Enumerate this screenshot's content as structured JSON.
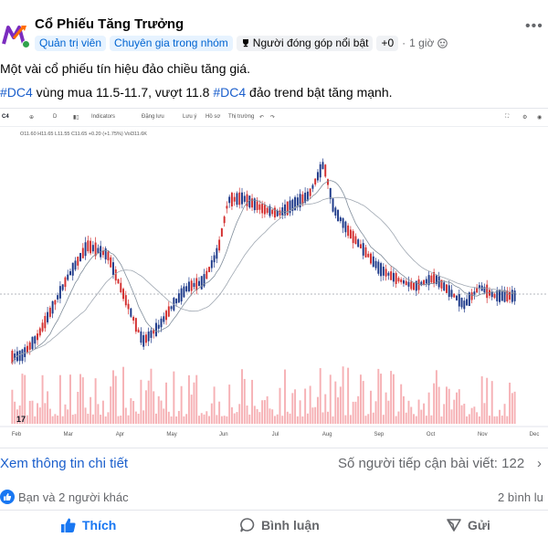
{
  "post": {
    "group_name": "Cổ Phiếu Tăng Trưởng",
    "badges": {
      "admin": "Quản trị viên",
      "expert": "Chuyên gia trong nhóm",
      "top_contributor": "Người đóng góp nổi bật",
      "plus": "+0"
    },
    "time": "1 giờ",
    "text_line1": "Một vài cổ phiếu tín hiệu đảo chiều tăng giá.",
    "line2": {
      "hashtag1": "#DC4",
      "mid": " vùng mua 11.5-11.7, vượt 11.8 ",
      "hashtag2": "#DC4",
      "end": " đảo trend bật tăng mạnh."
    }
  },
  "chart_toolbar": {
    "symbol": "C4",
    "interval": "D",
    "indicators": "Indicators",
    "alert": "Đặng lưu",
    "replay": "Lưu ý",
    "template": "Hồ sơ",
    "trade": "Thị trường"
  },
  "chart_ohlc": "O11.60 H11.65 L11.55 C11.65 +0.20 (+1.75%) Vol311.6K",
  "chart_data": {
    "type": "candlestick",
    "title": "",
    "x_tick_labels": [
      "Feb",
      "Mar",
      "Apr",
      "May",
      "Jun",
      "Jul",
      "Aug",
      "Sep",
      "Oct",
      "Nov",
      "Dec"
    ],
    "price_line_color": "#9aa0a6",
    "up_color": "#1e3a8a",
    "down_color": "#d32f2f",
    "volume_color": "#f4a3a8",
    "has_moving_averages": true,
    "has_volume": true
  },
  "footer": {
    "info_link": "Xem thông tin chi tiết",
    "reach": "Số người tiếp cận bài viết: 122",
    "reactors": "Bạn và 2 người khác",
    "comments": "2 bình lu",
    "like_label": "Thích",
    "comment_label": "Bình luận",
    "share_label": "Gửi"
  },
  "colors": {
    "link": "#1b5fcc",
    "like_blue": "#1877f2",
    "muted": "#65676b"
  }
}
